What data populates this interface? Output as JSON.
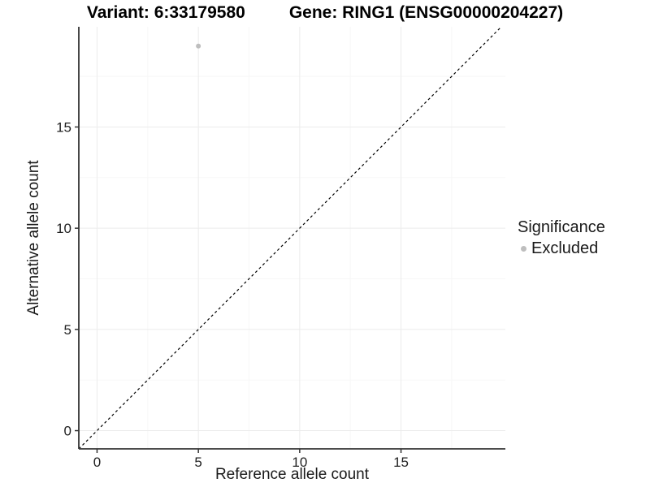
{
  "title": {
    "variant_label": "Variant: 6:33179580",
    "gene_label": "Gene: RING1 (ENSG00000204227)"
  },
  "legend": {
    "title": "Significance",
    "items": [
      {
        "label": "Excluded",
        "color": "#bebebe"
      }
    ]
  },
  "chart_data": {
    "type": "scatter",
    "title": "Variant: 6:33179580   Gene: RING1 (ENSG00000204227)",
    "xlabel": "Reference allele count",
    "ylabel": "Alternative allele count",
    "xlim": [
      -0.9,
      20.15
    ],
    "ylim": [
      -0.9,
      19.95
    ],
    "x_ticks": [
      0,
      5,
      10,
      15
    ],
    "y_ticks": [
      0,
      5,
      10,
      15
    ],
    "x_minor": [
      2.5,
      7.5,
      12.5,
      17.5
    ],
    "y_minor": [
      2.5,
      7.5,
      12.5,
      17.5
    ],
    "grid": true,
    "legend_position": "right",
    "points": [
      {
        "x": 5,
        "y": 19,
        "series": "Excluded"
      }
    ],
    "identity_line": {
      "style": "dashed",
      "from": [
        -0.9,
        -0.9
      ],
      "to": [
        19.95,
        19.95
      ]
    },
    "colors": {
      "point": "#bebebe",
      "grid_major": "#ececec",
      "grid_minor": "#f7f7f7",
      "axis": "#333333",
      "line": "#000000",
      "text": "#1f1f1f"
    }
  }
}
